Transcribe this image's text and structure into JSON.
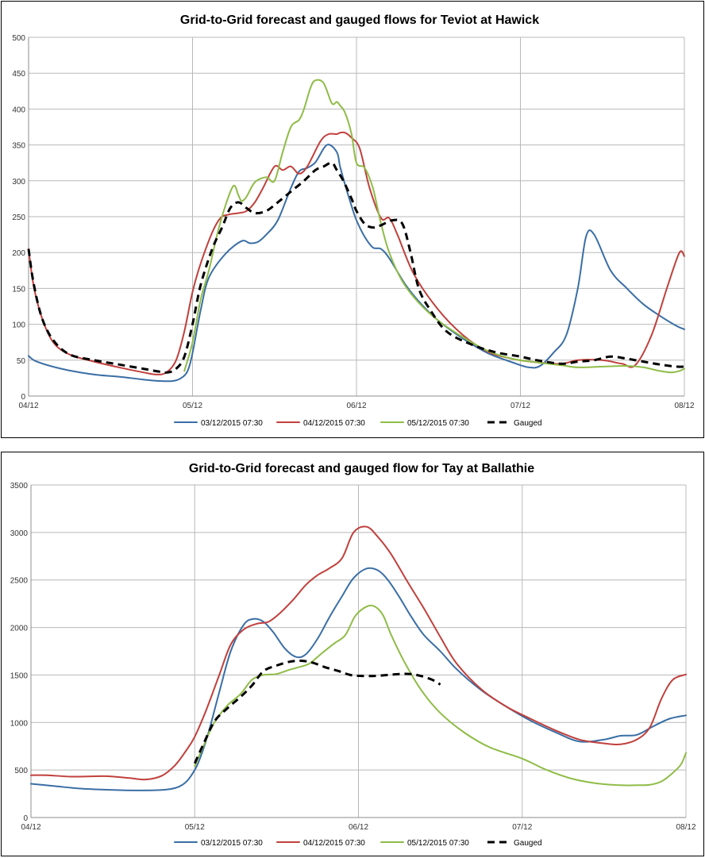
{
  "chart_data": [
    {
      "type": "line",
      "title": "Grid-to-Grid forecast and gauged flows for Teviot at Hawick",
      "xlabel": "",
      "ylabel": "",
      "x_range": [
        0,
        4
      ],
      "ylim": [
        0,
        500
      ],
      "y_ticks": [
        0,
        50,
        100,
        150,
        200,
        250,
        300,
        350,
        400,
        450,
        500
      ],
      "x_ticks": [
        {
          "x": 0,
          "label": "04/12"
        },
        {
          "x": 1,
          "label": "05/12"
        },
        {
          "x": 2,
          "label": "06/12"
        },
        {
          "x": 3,
          "label": "07/12"
        },
        {
          "x": 4,
          "label": "08/12"
        }
      ],
      "grid": true,
      "legend_position": "bottom",
      "series": [
        {
          "name": "03/12/2015 07:30",
          "color": "#3a6ea5",
          "style": "solid",
          "x": [
            0,
            0.05,
            0.2,
            0.4,
            0.55,
            0.7,
            0.8,
            0.88,
            0.93,
            0.97,
            1.0,
            1.05,
            1.1,
            1.2,
            1.3,
            1.35,
            1.4,
            1.45,
            1.52,
            1.6,
            1.65,
            1.7,
            1.75,
            1.82,
            1.88,
            1.9,
            1.93,
            1.97,
            2.0,
            2.05,
            2.1,
            2.15,
            2.2,
            2.3,
            2.4,
            2.5,
            2.65,
            2.8,
            2.95,
            3.05,
            3.12,
            3.2,
            3.28,
            3.35,
            3.4,
            3.45,
            3.55,
            3.65,
            3.75,
            3.85,
            3.95,
            4.0
          ],
          "values": [
            56,
            48,
            38,
            30,
            27,
            23,
            21,
            21,
            25,
            35,
            60,
            120,
            165,
            198,
            216,
            213,
            215,
            225,
            245,
            290,
            313,
            318,
            326,
            350,
            340,
            320,
            295,
            265,
            245,
            222,
            207,
            205,
            192,
            155,
            127,
            105,
            80,
            60,
            47,
            40,
            42,
            60,
            85,
            150,
            222,
            225,
            175,
            150,
            128,
            112,
            98,
            93
          ]
        },
        {
          "name": "04/12/2015 07:30",
          "color": "#c0403c",
          "style": "solid",
          "x": [
            0,
            0.03,
            0.08,
            0.15,
            0.25,
            0.4,
            0.55,
            0.7,
            0.78,
            0.84,
            0.9,
            0.95,
            1.0,
            1.05,
            1.12,
            1.17,
            1.22,
            1.28,
            1.33,
            1.38,
            1.43,
            1.5,
            1.55,
            1.6,
            1.65,
            1.7,
            1.78,
            1.83,
            1.88,
            1.9,
            1.93,
            1.97,
            2.02,
            2.08,
            2.15,
            2.2,
            2.25,
            2.35,
            2.5,
            2.65,
            2.8,
            2.95,
            3.1,
            3.25,
            3.35,
            3.5,
            3.62,
            3.7,
            3.8,
            3.9,
            3.97,
            4.0
          ],
          "values": [
            205,
            155,
            110,
            75,
            58,
            48,
            40,
            33,
            30,
            33,
            50,
            90,
            145,
            185,
            228,
            248,
            253,
            255,
            258,
            270,
            290,
            320,
            315,
            320,
            310,
            320,
            355,
            365,
            365,
            367,
            367,
            360,
            345,
            290,
            248,
            248,
            225,
            170,
            120,
            85,
            62,
            52,
            47,
            45,
            50,
            50,
            45,
            43,
            85,
            155,
            200,
            195
          ]
        },
        {
          "name": "05/12/2015 07:30",
          "color": "#8fbc47",
          "style": "solid",
          "x": [
            0.95,
            1.0,
            1.05,
            1.1,
            1.15,
            1.2,
            1.25,
            1.28,
            1.3,
            1.33,
            1.38,
            1.45,
            1.5,
            1.55,
            1.6,
            1.65,
            1.68,
            1.72,
            1.75,
            1.8,
            1.85,
            1.88,
            1.9,
            1.93,
            1.97,
            2.0,
            2.05,
            2.1,
            2.15,
            2.2,
            2.28,
            2.38,
            2.5,
            2.65,
            2.8,
            2.95,
            3.1,
            3.25,
            3.35,
            3.5,
            3.65,
            3.75,
            3.85,
            3.92,
            3.97,
            4.0
          ],
          "values": [
            35,
            75,
            135,
            175,
            225,
            265,
            293,
            280,
            272,
            278,
            298,
            305,
            300,
            340,
            375,
            385,
            400,
            430,
            440,
            436,
            408,
            410,
            405,
            395,
            365,
            325,
            318,
            290,
            240,
            200,
            160,
            130,
            105,
            82,
            63,
            52,
            47,
            43,
            40,
            41,
            42,
            40,
            35,
            33,
            35,
            38
          ]
        },
        {
          "name": "Gauged",
          "color": "#000000",
          "style": "dashed",
          "x": [
            0,
            0.03,
            0.08,
            0.15,
            0.25,
            0.4,
            0.55,
            0.7,
            0.8,
            0.85,
            0.9,
            0.95,
            1.0,
            1.05,
            1.12,
            1.18,
            1.23,
            1.28,
            1.33,
            1.38,
            1.45,
            1.52,
            1.6,
            1.68,
            1.75,
            1.8,
            1.85,
            1.88,
            1.92,
            1.97,
            2.0,
            2.05,
            2.1,
            2.15,
            2.22,
            2.28,
            2.33,
            2.38,
            2.45,
            2.55,
            2.7,
            2.85,
            3.0,
            3.1,
            3.25,
            3.35,
            3.45,
            3.55,
            3.65,
            3.75,
            3.85,
            3.95,
            4.0
          ],
          "values": [
            205,
            158,
            110,
            78,
            58,
            50,
            44,
            38,
            34,
            33,
            38,
            55,
            100,
            155,
            205,
            235,
            262,
            270,
            262,
            255,
            258,
            270,
            285,
            300,
            315,
            320,
            325,
            315,
            300,
            275,
            258,
            240,
            235,
            238,
            245,
            240,
            200,
            150,
            120,
            90,
            72,
            61,
            55,
            50,
            45,
            48,
            50,
            55,
            52,
            48,
            44,
            41,
            41
          ]
        }
      ]
    },
    {
      "type": "line",
      "title": "Grid-to-Grid forecast and gauged flow for Tay at Ballathie",
      "xlabel": "",
      "ylabel": "",
      "x_range": [
        0,
        4
      ],
      "ylim": [
        0,
        3500
      ],
      "y_ticks": [
        0,
        500,
        1000,
        1500,
        2000,
        2500,
        3000,
        3500
      ],
      "x_ticks": [
        {
          "x": 0,
          "label": "04/12"
        },
        {
          "x": 1,
          "label": "05/12"
        },
        {
          "x": 2,
          "label": "06/12"
        },
        {
          "x": 3,
          "label": "07/12"
        },
        {
          "x": 4,
          "label": "08/12"
        }
      ],
      "grid": true,
      "legend_position": "bottom",
      "series": [
        {
          "name": "03/12/2015 07:30",
          "color": "#3a6ea5",
          "style": "solid",
          "x": [
            0,
            0.15,
            0.3,
            0.5,
            0.65,
            0.8,
            0.88,
            0.93,
            0.97,
            1.02,
            1.08,
            1.15,
            1.22,
            1.3,
            1.36,
            1.42,
            1.48,
            1.55,
            1.62,
            1.68,
            1.75,
            1.82,
            1.9,
            1.97,
            2.05,
            2.12,
            2.18,
            2.25,
            2.32,
            2.4,
            2.5,
            2.6,
            2.75,
            2.9,
            3.05,
            3.2,
            3.35,
            3.5,
            3.6,
            3.7,
            3.8,
            3.9,
            4.0
          ],
          "values": [
            355,
            330,
            305,
            290,
            285,
            290,
            310,
            350,
            420,
            570,
            870,
            1320,
            1750,
            2030,
            2090,
            2060,
            1950,
            1780,
            1690,
            1720,
            1880,
            2100,
            2330,
            2520,
            2620,
            2600,
            2500,
            2320,
            2120,
            1920,
            1750,
            1560,
            1340,
            1170,
            1020,
            900,
            800,
            820,
            860,
            870,
            960,
            1040,
            1075
          ]
        },
        {
          "name": "04/12/2015 07:30",
          "color": "#c0403c",
          "style": "solid",
          "x": [
            0,
            0.1,
            0.25,
            0.45,
            0.6,
            0.7,
            0.8,
            0.88,
            0.95,
            1.0,
            1.07,
            1.15,
            1.22,
            1.3,
            1.38,
            1.45,
            1.52,
            1.6,
            1.68,
            1.75,
            1.82,
            1.9,
            1.97,
            2.05,
            2.12,
            2.2,
            2.3,
            2.4,
            2.5,
            2.6,
            2.75,
            2.9,
            3.05,
            3.2,
            3.35,
            3.5,
            3.6,
            3.7,
            3.78,
            3.85,
            3.92,
            4.0
          ],
          "values": [
            445,
            445,
            430,
            435,
            415,
            400,
            440,
            550,
            710,
            850,
            1130,
            1500,
            1820,
            1980,
            2040,
            2060,
            2150,
            2290,
            2450,
            2550,
            2620,
            2730,
            3000,
            3060,
            2950,
            2770,
            2480,
            2200,
            1900,
            1620,
            1350,
            1170,
            1040,
            920,
            820,
            780,
            770,
            820,
            950,
            1250,
            1450,
            1505
          ]
        },
        {
          "name": "05/12/2015 07:30",
          "color": "#8fbc47",
          "style": "solid",
          "x": [
            1.0,
            1.05,
            1.12,
            1.2,
            1.28,
            1.35,
            1.42,
            1.5,
            1.57,
            1.63,
            1.7,
            1.77,
            1.85,
            1.92,
            1.98,
            2.05,
            2.1,
            2.15,
            2.2,
            2.28,
            2.38,
            2.5,
            2.65,
            2.8,
            3.0,
            3.15,
            3.3,
            3.45,
            3.6,
            3.7,
            3.78,
            3.85,
            3.92,
            3.97,
            4.0
          ],
          "values": [
            540,
            740,
            1000,
            1180,
            1300,
            1450,
            1500,
            1510,
            1550,
            1580,
            1620,
            1720,
            1830,
            1920,
            2120,
            2220,
            2220,
            2130,
            1920,
            1640,
            1350,
            1100,
            890,
            740,
            620,
            500,
            410,
            360,
            340,
            340,
            345,
            380,
            470,
            560,
            680
          ]
        },
        {
          "name": "Gauged",
          "color": "#000000",
          "style": "dashed",
          "x": [
            1.0,
            1.05,
            1.12,
            1.2,
            1.28,
            1.35,
            1.42,
            1.5,
            1.58,
            1.65,
            1.72,
            1.8,
            1.88,
            1.95,
            2.02,
            2.1,
            2.18,
            2.25,
            2.32,
            2.38,
            2.45,
            2.5
          ],
          "values": [
            570,
            760,
            1010,
            1150,
            1270,
            1390,
            1540,
            1600,
            1640,
            1650,
            1630,
            1580,
            1540,
            1500,
            1490,
            1490,
            1500,
            1510,
            1510,
            1490,
            1450,
            1400
          ]
        }
      ]
    }
  ]
}
